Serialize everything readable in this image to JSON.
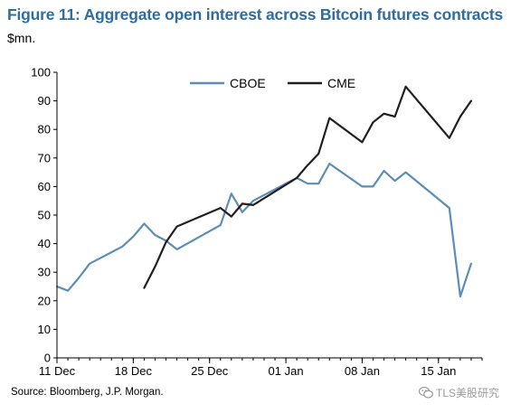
{
  "title": "Figure 11: Aggregate open interest across Bitcoin futures contracts",
  "source": "Source: Bloomberg, J.P. Morgan.",
  "watermark": "TLS美股研究",
  "watermark_icon": "wechat-icon",
  "chart_data": {
    "type": "line",
    "title": "Figure 11: Aggregate open interest across Bitcoin futures contracts",
    "ylabel": "$mn.",
    "xlabel": "",
    "ylim": [
      0,
      100
    ],
    "yticks": [
      0,
      10,
      20,
      30,
      40,
      50,
      60,
      70,
      80,
      90,
      100
    ],
    "xlim": [
      "2017-12-11",
      "2018-01-19"
    ],
    "xticks": [
      {
        "date": "2017-12-11",
        "label": "11 Dec"
      },
      {
        "date": "2017-12-18",
        "label": "18 Dec"
      },
      {
        "date": "2017-12-25",
        "label": "25 Dec"
      },
      {
        "date": "2018-01-01",
        "label": "01 Jan"
      },
      {
        "date": "2018-01-08",
        "label": "08 Jan"
      },
      {
        "date": "2018-01-15",
        "label": "15 Jan"
      }
    ],
    "grid": false,
    "legend": "top-center",
    "series": [
      {
        "name": "CBOE",
        "color": "#5b8db8",
        "points": [
          {
            "x": "2017-12-11",
            "y": 25
          },
          {
            "x": "2017-12-12",
            "y": 23.5
          },
          {
            "x": "2017-12-13",
            "y": 28
          },
          {
            "x": "2017-12-14",
            "y": 33
          },
          {
            "x": "2017-12-17",
            "y": 39
          },
          {
            "x": "2017-12-18",
            "y": 42.5
          },
          {
            "x": "2017-12-19",
            "y": 47
          },
          {
            "x": "2017-12-20",
            "y": 43
          },
          {
            "x": "2017-12-21",
            "y": 41
          },
          {
            "x": "2017-12-22",
            "y": 38
          },
          {
            "x": "2017-12-26",
            "y": 46.5
          },
          {
            "x": "2017-12-27",
            "y": 57.5
          },
          {
            "x": "2017-12-28",
            "y": 51
          },
          {
            "x": "2017-12-29",
            "y": 55
          },
          {
            "x": "2018-01-02",
            "y": 63
          },
          {
            "x": "2018-01-03",
            "y": 61
          },
          {
            "x": "2018-01-04",
            "y": 61
          },
          {
            "x": "2018-01-05",
            "y": 68
          },
          {
            "x": "2018-01-08",
            "y": 60
          },
          {
            "x": "2018-01-09",
            "y": 60
          },
          {
            "x": "2018-01-10",
            "y": 65.5
          },
          {
            "x": "2018-01-11",
            "y": 62
          },
          {
            "x": "2018-01-12",
            "y": 65
          },
          {
            "x": "2018-01-16",
            "y": 52.5
          },
          {
            "x": "2018-01-17",
            "y": 21.5
          },
          {
            "x": "2018-01-18",
            "y": 33
          }
        ]
      },
      {
        "name": "CME",
        "color": "#231f20",
        "points": [
          {
            "x": "2017-12-19",
            "y": 24.5
          },
          {
            "x": "2017-12-20",
            "y": 32
          },
          {
            "x": "2017-12-21",
            "y": 40.5
          },
          {
            "x": "2017-12-22",
            "y": 46
          },
          {
            "x": "2017-12-26",
            "y": 52.5
          },
          {
            "x": "2017-12-27",
            "y": 49.5
          },
          {
            "x": "2017-12-28",
            "y": 54
          },
          {
            "x": "2017-12-29",
            "y": 53.5
          },
          {
            "x": "2018-01-02",
            "y": 63
          },
          {
            "x": "2018-01-03",
            "y": 67.5
          },
          {
            "x": "2018-01-04",
            "y": 71.5
          },
          {
            "x": "2018-01-05",
            "y": 84
          },
          {
            "x": "2018-01-08",
            "y": 75.5
          },
          {
            "x": "2018-01-09",
            "y": 82.5
          },
          {
            "x": "2018-01-10",
            "y": 85.5
          },
          {
            "x": "2018-01-11",
            "y": 84.5
          },
          {
            "x": "2018-01-12",
            "y": 95
          },
          {
            "x": "2018-01-16",
            "y": 77
          },
          {
            "x": "2018-01-17",
            "y": 84.5
          },
          {
            "x": "2018-01-18",
            "y": 90
          }
        ]
      }
    ]
  }
}
